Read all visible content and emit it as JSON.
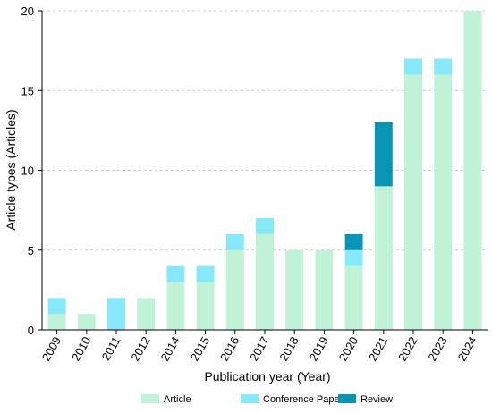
{
  "chart_data": {
    "type": "bar",
    "stacked": true,
    "xlabel": "Publication year (Year)",
    "ylabel": "Article types (Articles)",
    "ylim": [
      0,
      20
    ],
    "yticks": [
      0,
      5,
      10,
      15,
      20
    ],
    "grid": "horizontal dashed",
    "legend_position": "bottom",
    "categories": [
      "2009",
      "2010",
      "2011",
      "2012",
      "2014",
      "2015",
      "2016",
      "2017",
      "2018",
      "2019",
      "2020",
      "2021",
      "2022",
      "2023",
      "2024"
    ],
    "series": [
      {
        "name": "Article",
        "color": "#bff2d6",
        "values": [
          1,
          1,
          0,
          2,
          3,
          3,
          5,
          6,
          5,
          5,
          4,
          9,
          16,
          16,
          20
        ]
      },
      {
        "name": "Conference Paper",
        "color": "#86e8fb",
        "values": [
          1,
          0,
          2,
          0,
          1,
          1,
          1,
          1,
          0,
          0,
          1,
          0,
          1,
          1,
          0
        ]
      },
      {
        "name": "Review",
        "color": "#0794b5",
        "values": [
          0,
          0,
          0,
          0,
          0,
          0,
          0,
          0,
          0,
          0,
          1,
          4,
          0,
          0,
          0
        ]
      }
    ]
  }
}
